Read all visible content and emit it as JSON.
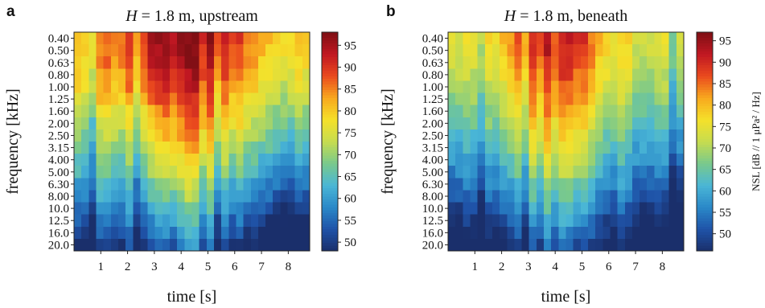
{
  "chart_data": [
    {
      "type": "heatmap",
      "panel": "a",
      "title_parts": [
        "H",
        " = 1.8 m, upstream"
      ],
      "xlabel": "time [s]",
      "ylabel": "frequency [kHz]",
      "x_ticks": [
        1,
        2,
        3,
        4,
        5,
        6,
        7,
        8
      ],
      "xlim": [
        0,
        8.8
      ],
      "y_categories": [
        "0.40",
        "0.50",
        "0.63",
        "0.80",
        "1.00",
        "1.25",
        "1.60",
        "2.00",
        "2.50",
        "3.15",
        "4.00",
        "5.00",
        "6.30",
        "8.00",
        "10.0",
        "12.5",
        "16.0",
        "20.0"
      ],
      "time_bins": 32,
      "peak_time": 4.3,
      "peak_level": 95,
      "colorbar": {
        "min": 48,
        "max": 98,
        "ticks": [
          50,
          55,
          60,
          65,
          70,
          75,
          80,
          85,
          90,
          95
        ],
        "label": ""
      },
      "colormap": [
        "#1a2f6b",
        "#1f53a8",
        "#2a88c8",
        "#4ab6d6",
        "#79c98c",
        "#c6dc4f",
        "#f5e12a",
        "#f8a81e",
        "#ea4a1e",
        "#c01722",
        "#7f0f14"
      ]
    },
    {
      "type": "heatmap",
      "panel": "b",
      "title_parts": [
        "H",
        " = 1.8 m, beneath"
      ],
      "xlabel": "time [s]",
      "ylabel": "frequency [kHz]",
      "x_ticks": [
        1,
        2,
        3,
        4,
        5,
        6,
        7,
        8
      ],
      "xlim": [
        0,
        8.8
      ],
      "y_categories": [
        "0.40",
        "0.50",
        "0.63",
        "0.80",
        "1.00",
        "1.25",
        "1.60",
        "2.00",
        "2.50",
        "3.15",
        "4.00",
        "5.00",
        "6.30",
        "8.00",
        "10.0",
        "12.5",
        "16.0",
        "20.0"
      ],
      "time_bins": 32,
      "peak_time": 3.9,
      "peak_level": 96,
      "colorbar": {
        "min": 46,
        "max": 97,
        "ticks": [
          50,
          55,
          60,
          65,
          70,
          75,
          80,
          85,
          90,
          95
        ],
        "label": "NSL [dB // 1 μPa² / Hz]"
      },
      "colormap": [
        "#1a2f6b",
        "#1f53a8",
        "#2a88c8",
        "#4ab6d6",
        "#79c98c",
        "#c6dc4f",
        "#f5e12a",
        "#f8a81e",
        "#ea4a1e",
        "#c01722",
        "#7f0f14"
      ]
    }
  ]
}
